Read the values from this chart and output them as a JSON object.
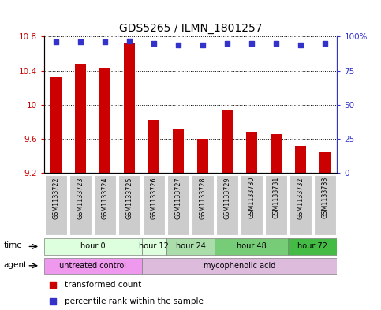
{
  "title": "GDS5265 / ILMN_1801257",
  "samples": [
    "GSM1133722",
    "GSM1133723",
    "GSM1133724",
    "GSM1133725",
    "GSM1133726",
    "GSM1133727",
    "GSM1133728",
    "GSM1133729",
    "GSM1133730",
    "GSM1133731",
    "GSM1133732",
    "GSM1133733"
  ],
  "bar_values": [
    10.32,
    10.48,
    10.43,
    10.72,
    9.82,
    9.72,
    9.6,
    9.93,
    9.68,
    9.66,
    9.52,
    9.44
  ],
  "percentile_values": [
    96,
    96,
    96,
    97,
    95,
    94,
    94,
    95,
    95,
    95,
    94,
    95
  ],
  "ylim_left": [
    9.2,
    10.8
  ],
  "ylim_right": [
    0,
    100
  ],
  "yticks_left": [
    9.2,
    9.6,
    10.0,
    10.4,
    10.8
  ],
  "yticks_right": [
    0,
    25,
    50,
    75,
    100
  ],
  "ytick_labels_right": [
    "0",
    "25",
    "50",
    "75",
    "100%"
  ],
  "bar_color": "#cc0000",
  "dot_color": "#3333cc",
  "grid_color": "#000000",
  "time_groups": [
    {
      "label": "hour 0",
      "start": 0,
      "end": 3,
      "color": "#ddffdd"
    },
    {
      "label": "hour 12",
      "start": 4,
      "end": 4,
      "color": "#ddffdd"
    },
    {
      "label": "hour 24",
      "start": 5,
      "end": 6,
      "color": "#aaddaa"
    },
    {
      "label": "hour 48",
      "start": 7,
      "end": 9,
      "color": "#77cc77"
    },
    {
      "label": "hour 72",
      "start": 10,
      "end": 11,
      "color": "#44bb44"
    }
  ],
  "agent_groups": [
    {
      "label": "untreated control",
      "start": 0,
      "end": 3,
      "color": "#ee99ee"
    },
    {
      "label": "mycophenolic acid",
      "start": 4,
      "end": 11,
      "color": "#ddbbdd"
    }
  ],
  "legend_items": [
    {
      "color": "#cc0000",
      "label": "transformed count"
    },
    {
      "color": "#3333cc",
      "label": "percentile rank within the sample"
    }
  ],
  "row_label_time": "time",
  "row_label_agent": "agent",
  "bar_width": 0.45,
  "dot_size": 25,
  "sample_box_color": "#cccccc",
  "background_color": "#ffffff"
}
